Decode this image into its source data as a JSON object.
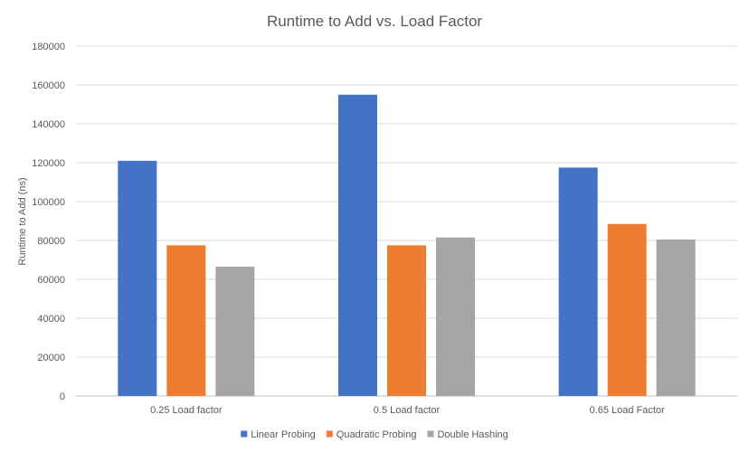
{
  "chart_data": {
    "type": "bar",
    "title": "Runtime to Add vs. Load Factor",
    "xlabel": "",
    "ylabel": "Runtime to Add (ns)",
    "categories": [
      "0.25 Load factor",
      "0.5 Load factor",
      "0.65 Load Factor"
    ],
    "series": [
      {
        "name": "Linear Probing",
        "color": "#4472C4",
        "values": [
          121000,
          155000,
          117500
        ]
      },
      {
        "name": "Quadratic Probing",
        "color": "#ED7D31",
        "values": [
          77500,
          77500,
          88500
        ]
      },
      {
        "name": "Double Hashing",
        "color": "#A5A5A5",
        "values": [
          66500,
          81500,
          80500
        ]
      }
    ],
    "ylim": [
      0,
      180000
    ],
    "yticks": [
      "0",
      "20000",
      "40000",
      "60000",
      "80000",
      "100000",
      "120000",
      "140000",
      "160000",
      "180000"
    ],
    "grid": true,
    "legend_position": "bottom"
  }
}
